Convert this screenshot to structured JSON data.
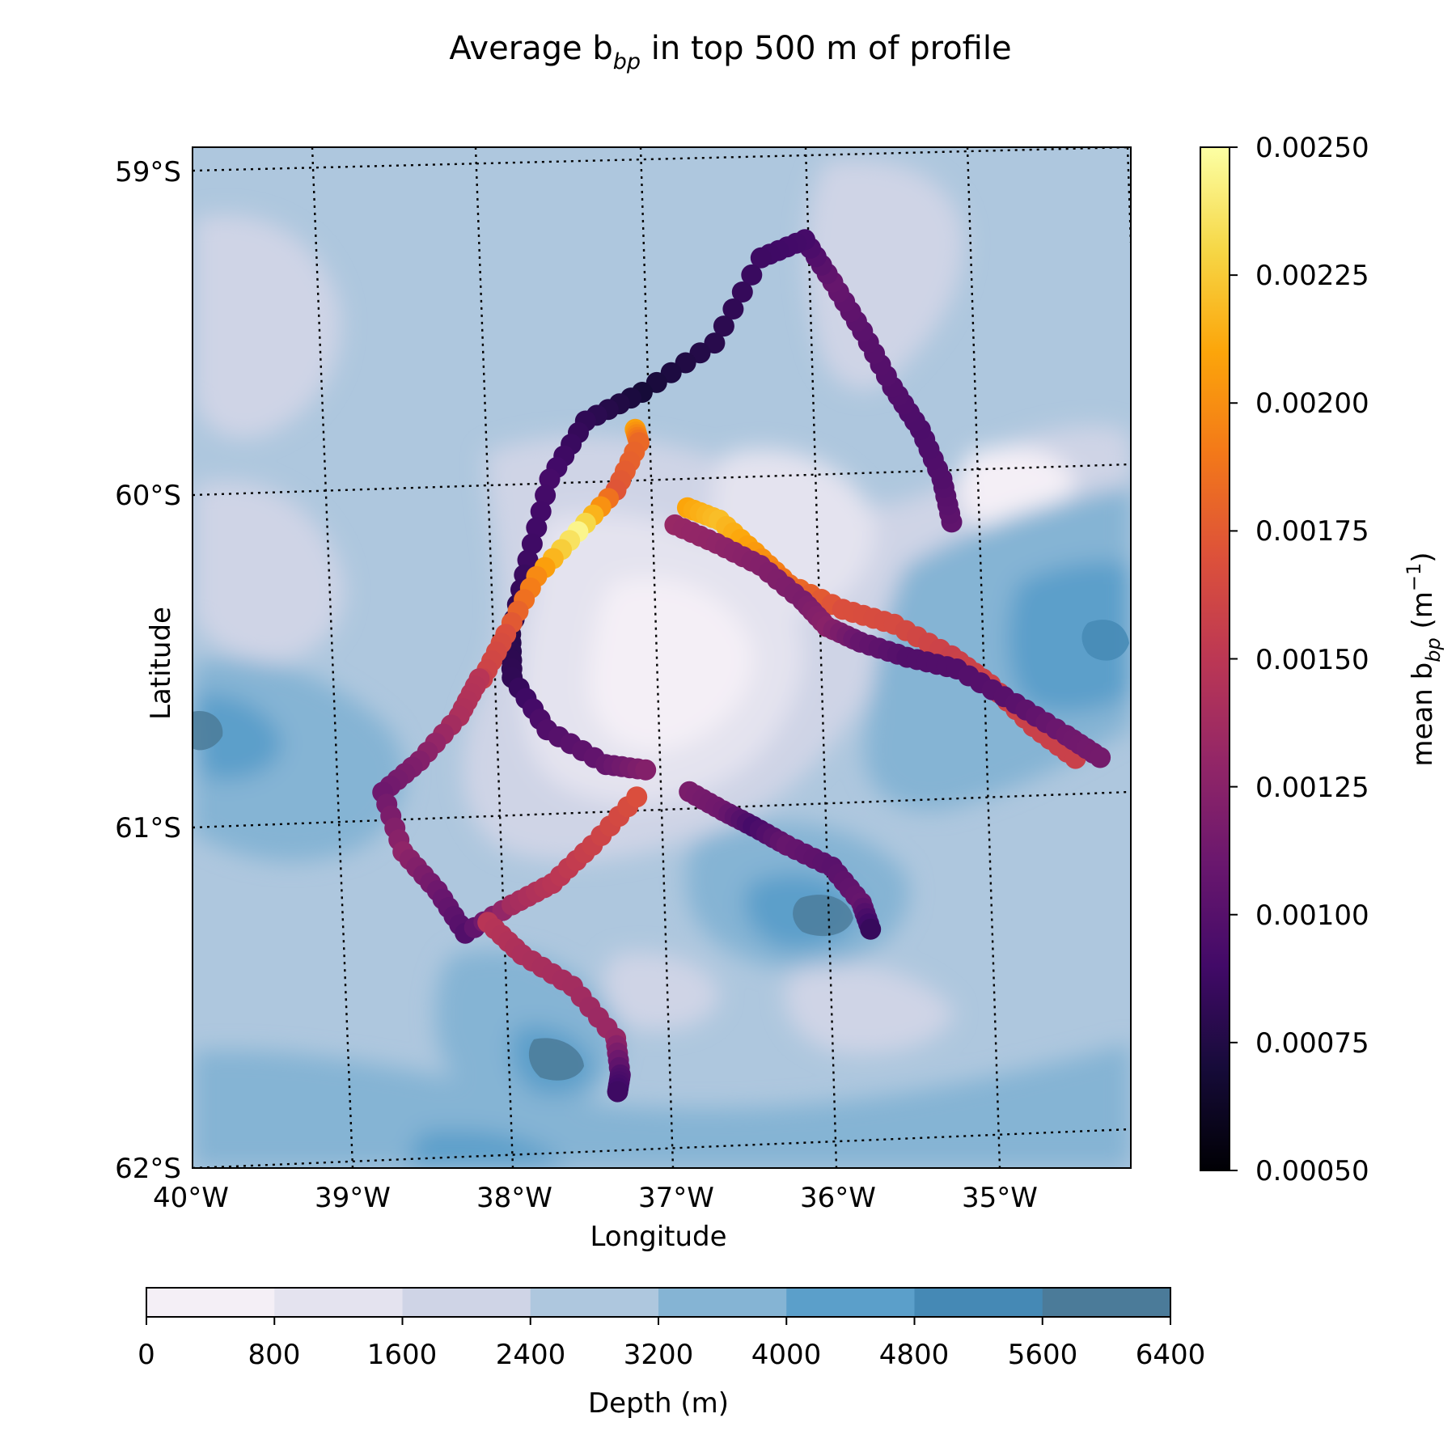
{
  "title": {
    "main": "Average b",
    "sub": "bp",
    "rest": " in top 500 m of profile"
  },
  "map": {
    "xlabel": "Longitude",
    "ylabel": "Latitude",
    "lat_ticks": [
      "59°S",
      "60°S",
      "61°S",
      "62°S"
    ],
    "lon_ticks": [
      "40°W",
      "39°W",
      "38°W",
      "37°W",
      "36°W",
      "35°W"
    ],
    "graticule_style": "dotted"
  },
  "colorbar_bbp": {
    "label_main": "mean b",
    "label_sub": "bp",
    "label_unit": " (m",
    "label_exp": "−1",
    "label_close": ")",
    "ticks": [
      "0.00250",
      "0.00225",
      "0.00200",
      "0.00175",
      "0.00150",
      "0.00125",
      "0.00100",
      "0.00075",
      "0.00050"
    ],
    "range": [
      0.0005,
      0.0025
    ],
    "colormap": "inferno"
  },
  "colorbar_depth": {
    "label": "Depth (m)",
    "ticks": [
      "0",
      "800",
      "1600",
      "2400",
      "3200",
      "4000",
      "4800",
      "5600",
      "6400"
    ],
    "colors": [
      "#f4eff6",
      "#e4e3ef",
      "#cfd4e6",
      "#aec7de",
      "#85b4d4",
      "#5b9fca",
      "#4589b5",
      "#4b7b99"
    ]
  },
  "chart_data": {
    "type": "scatter",
    "title": "Average bbp in top 500 m of profile",
    "xlabel": "Longitude",
    "ylabel": "Latitude",
    "color_label": "mean bbp (m−1)",
    "xlim": [
      -40,
      -34.3
    ],
    "ylim": [
      -62,
      -59
    ],
    "clim": [
      0.0005,
      0.0025
    ],
    "background": "bathymetry filled contours, depth 0–6400 m, 800 m steps",
    "series": [
      {
        "points": [
          {
            "lon": -35.45,
            "lat": -60.13,
            "v": 0.00105
          },
          {
            "lon": -35.5,
            "lat": -60.0,
            "v": 0.00098
          },
          {
            "lon": -35.62,
            "lat": -59.85,
            "v": 0.00095
          },
          {
            "lon": -35.78,
            "lat": -59.72,
            "v": 0.00098
          },
          {
            "lon": -35.95,
            "lat": -59.55,
            "v": 0.00102
          },
          {
            "lon": -36.12,
            "lat": -59.4,
            "v": 0.00108
          },
          {
            "lon": -36.28,
            "lat": -59.27,
            "v": 0.00092
          },
          {
            "lon": -36.55,
            "lat": -59.32,
            "v": 0.00088
          },
          {
            "lon": -36.85,
            "lat": -59.57,
            "v": 0.00078
          },
          {
            "lon": -37.3,
            "lat": -59.71,
            "v": 0.0007
          },
          {
            "lon": -37.65,
            "lat": -59.79,
            "v": 0.00082
          },
          {
            "lon": -37.88,
            "lat": -59.96,
            "v": 0.00092
          },
          {
            "lon": -38.03,
            "lat": -60.2,
            "v": 0.00088
          },
          {
            "lon": -38.15,
            "lat": -60.42,
            "v": 0.00078
          },
          {
            "lon": -38.15,
            "lat": -60.55,
            "v": 0.00082
          },
          {
            "lon": -37.95,
            "lat": -60.71,
            "v": 0.00098
          },
          {
            "lon": -37.6,
            "lat": -60.82,
            "v": 0.00108
          },
          {
            "lon": -37.36,
            "lat": -60.84,
            "v": 0.00122
          }
        ]
      },
      {
        "points": [
          {
            "lon": -37.35,
            "lat": -59.82,
            "v": 0.00208
          },
          {
            "lon": -37.33,
            "lat": -59.86,
            "v": 0.00182
          },
          {
            "lon": -37.48,
            "lat": -60.0,
            "v": 0.00172
          },
          {
            "lon": -37.72,
            "lat": -60.12,
            "v": 0.00245
          },
          {
            "lon": -37.98,
            "lat": -60.25,
            "v": 0.00198
          },
          {
            "lon": -38.18,
            "lat": -60.42,
            "v": 0.00168
          },
          {
            "lon": -38.33,
            "lat": -60.55,
            "v": 0.00158
          }
        ]
      },
      {
        "points": [
          {
            "lon": -38.35,
            "lat": -60.55,
            "v": 0.00148
          },
          {
            "lon": -38.48,
            "lat": -60.66,
            "v": 0.00142
          },
          {
            "lon": -38.73,
            "lat": -60.79,
            "v": 0.00122
          },
          {
            "lon": -38.96,
            "lat": -60.88,
            "v": 0.00112
          },
          {
            "lon": -38.85,
            "lat": -61.06,
            "v": 0.00128
          },
          {
            "lon": -38.65,
            "lat": -61.18,
            "v": 0.00112
          },
          {
            "lon": -38.49,
            "lat": -61.31,
            "v": 0.00098
          },
          {
            "lon": -38.2,
            "lat": -61.23,
            "v": 0.00138
          },
          {
            "lon": -37.95,
            "lat": -61.17,
            "v": 0.00148
          },
          {
            "lon": -37.7,
            "lat": -61.06,
            "v": 0.00158
          },
          {
            "lon": -37.42,
            "lat": -60.92,
            "v": 0.00168
          }
        ]
      },
      {
        "points": [
          {
            "lon": -38.35,
            "lat": -61.28,
            "v": 0.00148
          },
          {
            "lon": -38.15,
            "lat": -61.38,
            "v": 0.00142
          },
          {
            "lon": -37.85,
            "lat": -61.48,
            "v": 0.00138
          },
          {
            "lon": -37.6,
            "lat": -61.64,
            "v": 0.00132
          },
          {
            "lon": -37.58,
            "lat": -61.75,
            "v": 0.00098
          },
          {
            "lon": -37.6,
            "lat": -61.8,
            "v": 0.00088
          }
        ]
      },
      {
        "points": [
          {
            "lon": -37.05,
            "lat": -60.06,
            "v": 0.0021
          },
          {
            "lon": -36.86,
            "lat": -60.1,
            "v": 0.0022
          },
          {
            "lon": -36.65,
            "lat": -60.2,
            "v": 0.00205
          },
          {
            "lon": -36.45,
            "lat": -60.3,
            "v": 0.00185
          },
          {
            "lon": -36.13,
            "lat": -60.38,
            "v": 0.00168
          },
          {
            "lon": -35.82,
            "lat": -60.43,
            "v": 0.00165
          },
          {
            "lon": -35.48,
            "lat": -60.53,
            "v": 0.00158
          },
          {
            "lon": -35.25,
            "lat": -60.62,
            "v": 0.0016
          },
          {
            "lon": -35.0,
            "lat": -60.75,
            "v": 0.00158
          },
          {
            "lon": -34.75,
            "lat": -60.85,
            "v": 0.00158
          }
        ]
      },
      {
        "points": [
          {
            "lon": -37.13,
            "lat": -60.11,
            "v": 0.00132
          },
          {
            "lon": -36.88,
            "lat": -60.17,
            "v": 0.00128
          },
          {
            "lon": -36.62,
            "lat": -60.24,
            "v": 0.00122
          },
          {
            "lon": -36.37,
            "lat": -60.35,
            "v": 0.00118
          },
          {
            "lon": -36.23,
            "lat": -60.43,
            "v": 0.00125
          },
          {
            "lon": -36.03,
            "lat": -60.48,
            "v": 0.00108
          },
          {
            "lon": -35.75,
            "lat": -60.53,
            "v": 0.00098
          },
          {
            "lon": -35.45,
            "lat": -60.57,
            "v": 0.00098
          },
          {
            "lon": -35.1,
            "lat": -60.68,
            "v": 0.00102
          },
          {
            "lon": -34.8,
            "lat": -60.78,
            "v": 0.00112
          },
          {
            "lon": -34.6,
            "lat": -60.85,
            "v": 0.00115
          }
        ]
      },
      {
        "points": [
          {
            "lon": -37.1,
            "lat": -60.91,
            "v": 0.00118
          },
          {
            "lon": -36.9,
            "lat": -60.97,
            "v": 0.00112
          },
          {
            "lon": -36.72,
            "lat": -61.02,
            "v": 0.00092
          },
          {
            "lon": -36.52,
            "lat": -61.08,
            "v": 0.00108
          },
          {
            "lon": -36.25,
            "lat": -61.15,
            "v": 0.00102
          },
          {
            "lon": -36.08,
            "lat": -61.26,
            "v": 0.00108
          },
          {
            "lon": -36.03,
            "lat": -61.34,
            "v": 0.00085
          }
        ]
      }
    ]
  }
}
